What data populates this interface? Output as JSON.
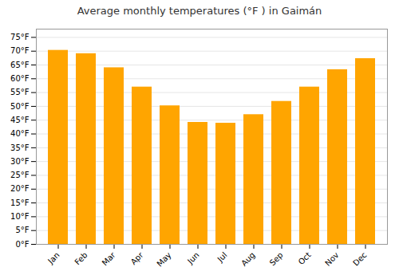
{
  "chart_data": {
    "type": "bar",
    "title": "Average monthly temperatures (°F ) in Gaimán",
    "categories": [
      "Jan",
      "Feb",
      "Mar",
      "Apr",
      "May",
      "Jun",
      "Jul",
      "Aug",
      "Sep",
      "Oct",
      "Nov",
      "Dec"
    ],
    "values": [
      70.3,
      69.1,
      64.0,
      57.0,
      50.2,
      44.2,
      43.9,
      47.0,
      51.8,
      57.0,
      63.3,
      67.3
    ],
    "color": "#FFA500",
    "ylim": [
      0,
      78
    ],
    "yticks": [
      {
        "value": 0,
        "label": "0°F"
      },
      {
        "value": 5,
        "label": "5°F"
      },
      {
        "value": 10,
        "label": "10°F"
      },
      {
        "value": 15,
        "label": "15°F"
      },
      {
        "value": 20,
        "label": "20°F"
      },
      {
        "value": 25,
        "label": "25°F"
      },
      {
        "value": 30,
        "label": "30°F"
      },
      {
        "value": 35,
        "label": "35°F"
      },
      {
        "value": 40,
        "label": "40°F"
      },
      {
        "value": 45,
        "label": "45°F"
      },
      {
        "value": 50,
        "label": "50°F"
      },
      {
        "value": 55,
        "label": "55°F"
      },
      {
        "value": 60,
        "label": "60°F"
      },
      {
        "value": 65,
        "label": "65°F"
      },
      {
        "value": 70,
        "label": "70°F"
      },
      {
        "value": 75,
        "label": "75°F"
      }
    ],
    "grid": true
  }
}
